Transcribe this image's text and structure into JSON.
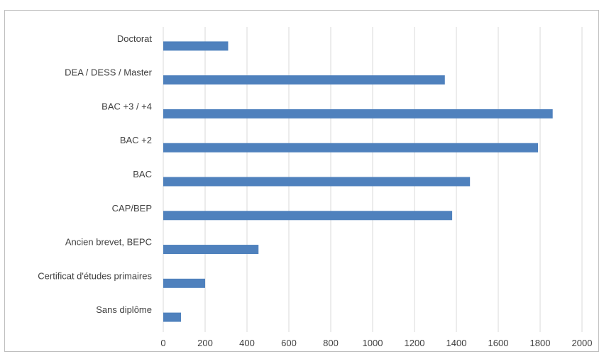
{
  "chart_data": {
    "type": "bar",
    "orientation": "horizontal",
    "title": "",
    "xlabel": "",
    "ylabel": "",
    "categories": [
      "Doctorat",
      "DEA / DESS / Master",
      "BAC +3 / +4",
      "BAC +2",
      "BAC",
      "CAP/BEP",
      "Ancien brevet, BEPC",
      "Certificat d'études primaires",
      "Sans diplôme"
    ],
    "values": [
      310,
      1345,
      1860,
      1790,
      1465,
      1380,
      455,
      200,
      85
    ],
    "xlim": [
      0,
      2000
    ],
    "xticks": [
      0,
      200,
      400,
      600,
      800,
      1000,
      1200,
      1400,
      1600,
      1800,
      2000
    ],
    "grid": "vertical",
    "legend": "none",
    "bar_color": "#4f81bd",
    "grid_color": "#d9d9d9"
  }
}
